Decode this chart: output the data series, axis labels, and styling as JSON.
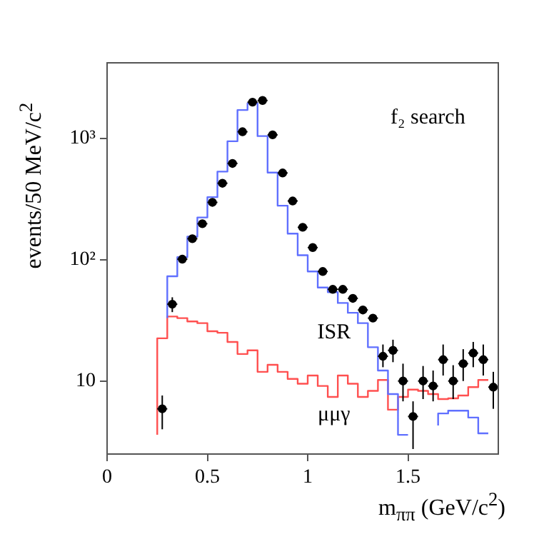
{
  "chart_data": {
    "type": "step",
    "xlabel": "m$_{ππ}$ (GeV/c$^{2}$)",
    "ylabel": "events/50 MeV/c$^{2}$",
    "log": "y",
    "xlim": [
      0,
      1.95
    ],
    "xticks": [
      0,
      0.5,
      1,
      1.5
    ],
    "ylim": [
      2.5,
      4200
    ],
    "yticks": [
      10,
      {
        "value": 100,
        "label": "10²"
      },
      {
        "value": 1000,
        "label": "10³"
      }
    ],
    "legend": false,
    "annotations": [
      "f₂ search",
      "ISR",
      "μμγ"
    ],
    "series": [
      {
        "color": "#6070ff",
        "marker": "none",
        "x": [
          0.3,
          0.35,
          0.4,
          0.45,
          0.5,
          0.55,
          0.6,
          0.65,
          0.7,
          0.75,
          0.8,
          0.85,
          0.9,
          0.95,
          1.0,
          1.05,
          1.1,
          1.15,
          1.2,
          1.25,
          1.3,
          1.35,
          1.4,
          1.45,
          1.5,
          1.55,
          1.6,
          1.65,
          1.7,
          1.75,
          1.8,
          1.85,
          1.9
        ],
        "values": [
          33,
          73,
          105,
          155,
          223,
          328,
          533,
          948,
          1715,
          1950,
          1045,
          523,
          279,
          164,
          109,
          80,
          59,
          54,
          44,
          36.5,
          30,
          19,
          12.2,
          7.8,
          3.6,
          null,
          null,
          4.3,
          5.4,
          5.7,
          5.7,
          5.0,
          3.7
        ]
      },
      {
        "color": "#ff5050",
        "marker": "none",
        "x": [
          0.25,
          0.3,
          0.35,
          0.4,
          0.45,
          0.5,
          0.55,
          0.6,
          0.65,
          0.7,
          0.75,
          0.8,
          0.85,
          0.9,
          0.95,
          1.0,
          1.05,
          1.1,
          1.15,
          1.2,
          1.25,
          1.3,
          1.35,
          1.4,
          1.45,
          1.5,
          1.55,
          1.6,
          1.65,
          1.7,
          1.75,
          1.8,
          1.85,
          1.9
        ],
        "values": [
          3.6,
          22.5,
          34,
          33,
          31,
          30,
          25.7,
          25,
          21,
          16.7,
          17.9,
          11.9,
          13.6,
          11.9,
          10.4,
          9.5,
          11.1,
          9.1,
          7.4,
          11.1,
          9.5,
          7.4,
          8.3,
          10.2,
          5.8,
          7.4,
          8.5,
          8.3,
          7.8,
          7.1,
          7.2,
          7.6,
          8.9,
          10.2
        ]
      },
      {
        "type": "scatter",
        "color": "#000000",
        "marker": "circle",
        "x": [
          0.275,
          0.325,
          0.375,
          0.425,
          0.475,
          0.525,
          0.575,
          0.625,
          0.675,
          0.725,
          0.775,
          0.825,
          0.875,
          0.925,
          0.975,
          1.025,
          1.075,
          1.125,
          1.175,
          1.225,
          1.275,
          1.325,
          1.375,
          1.425,
          1.475,
          1.525,
          1.575,
          1.625,
          1.675,
          1.725,
          1.775,
          1.825,
          1.875,
          1.925
        ],
        "values": [
          5.9,
          43,
          101,
          149,
          198,
          297,
          427,
          622,
          1135,
          1990,
          2055,
          1070,
          519,
          305,
          185,
          126,
          80,
          57,
          57,
          48,
          38.5,
          33,
          16,
          17.9,
          10,
          5.1,
          10,
          9.1,
          15,
          10,
          13.9,
          17,
          15,
          8.9
        ],
        "errors": [
          [
            4.0,
            7.6
          ],
          [
            37,
            49
          ],
          [
            94,
            108
          ],
          null,
          null,
          null,
          null,
          null,
          null,
          null,
          null,
          null,
          null,
          null,
          null,
          null,
          null,
          null,
          null,
          null,
          null,
          null,
          [
            13,
            20
          ],
          [
            14.3,
            21.9
          ],
          [
            6.8,
            13.9
          ],
          [
            2.75,
            6.8
          ],
          [
            7.1,
            13.3
          ],
          [
            6.8,
            12.2
          ],
          [
            11.1,
            20
          ],
          [
            7.1,
            13.5
          ],
          [
            10,
            18.3
          ],
          [
            13,
            21
          ],
          [
            11.1,
            20
          ],
          [
            5.9,
            11.9
          ]
        ],
        "xerrors": [
          0.025,
          0.025,
          0.025,
          0.025,
          0.025,
          0.025,
          0.025,
          0.025,
          0.025,
          0.025,
          0.025,
          0.025,
          0.025,
          0.025,
          0.025,
          0.025,
          0.025,
          0.025,
          0.025,
          0.025,
          0.025,
          0.025,
          0.025,
          0.025,
          0.025,
          0.025,
          0.025,
          0.025,
          0.025,
          0.025,
          0.025,
          0.025,
          0.025,
          0.025
        ]
      }
    ]
  }
}
